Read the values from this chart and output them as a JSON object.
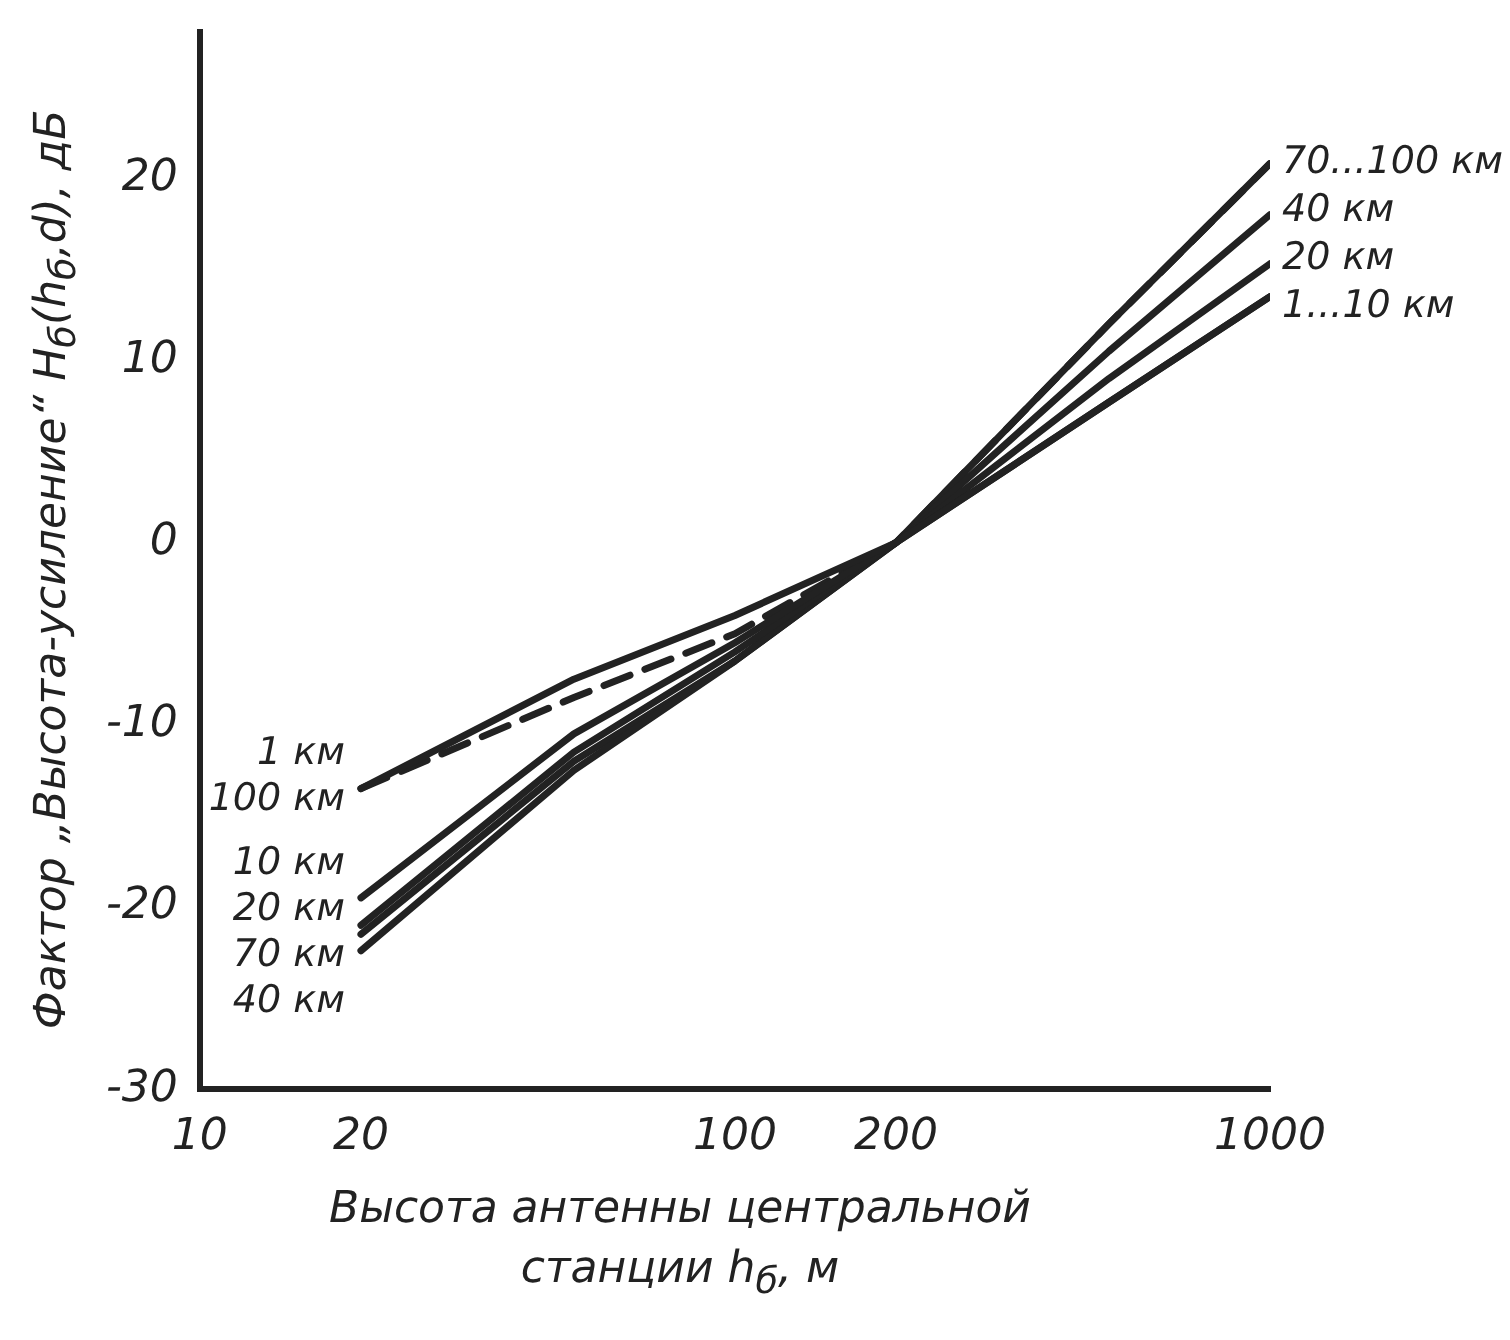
{
  "chart_data": {
    "type": "line",
    "xlabel": "Высота антенны центральной станции h$_{б}$, м",
    "ylabel": "Фактор „Высота-усиление“ H$_{б}$(h$_{б}$,d), дБ",
    "x": [
      20,
      50,
      100,
      200,
      500,
      1000
    ],
    "series": [
      {
        "name": "1 км",
        "color": "#222222",
        "values": [
          -13.5,
          -7.5,
          -4,
          0,
          7.7,
          13.5
        ]
      },
      {
        "name": "10 км",
        "color": "#222222",
        "values": [
          -19.5,
          -10.5,
          -5.5,
          0,
          7.7,
          13.5
        ]
      },
      {
        "name": "20 км",
        "color": "#222222",
        "values": [
          -21,
          -11.5,
          -6,
          0,
          9,
          15.3
        ]
      },
      {
        "name": "40 км",
        "color": "#222222",
        "values": [
          -22.4,
          -12.5,
          -6.5,
          0,
          10.5,
          18
        ]
      },
      {
        "name": "70 км",
        "color": "#222222",
        "values": [
          -21.5,
          -12,
          -6.5,
          0,
          12,
          20.8
        ]
      },
      {
        "name": "100 км",
        "color": "#222222",
        "line_style": "dashed",
        "values": [
          -13.5,
          -8.5,
          -5,
          0,
          12,
          20.8
        ]
      }
    ],
    "log": "x",
    "xlim": [
      10,
      1000
    ],
    "xticks": [
      10,
      20,
      100,
      200,
      1000
    ],
    "ylim": [
      -30,
      28
    ],
    "yticks": [
      -30,
      -20,
      -10,
      0,
      10,
      20
    ],
    "grid": false,
    "legend": false,
    "marker": "none",
    "line_style": "solid",
    "annotations": [
      "70...100 км",
      "40 км",
      "20 км",
      "1...10 км"
    ]
  }
}
